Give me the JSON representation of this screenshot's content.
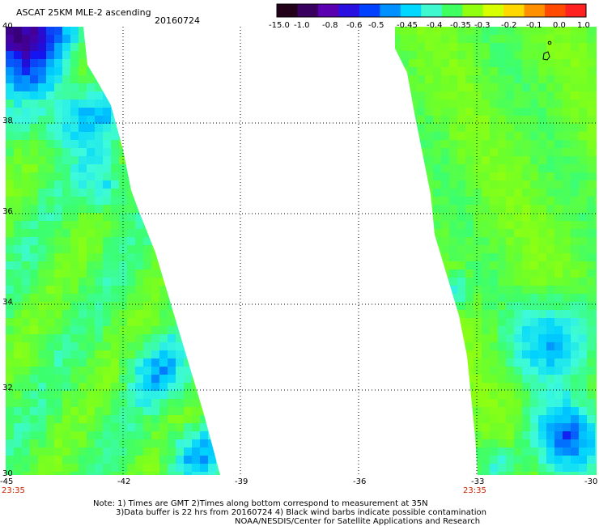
{
  "header": {
    "title": "ASCAT 25KM MLE-2 ascending",
    "date": "20160724"
  },
  "colorbar": {
    "labels": [
      "-15.0",
      "-1.0",
      "-0.8",
      "-0.6",
      "-0.5",
      "-0.45",
      "-0.4",
      "-0.35",
      "-0.3",
      "-0.2",
      "-0.1",
      "0.0",
      "1.0"
    ],
    "colors": [
      "#22001a",
      "#3a0060",
      "#5a00b0",
      "#2a10e0",
      "#0040ff",
      "#0090ff",
      "#00d8ff",
      "#40f8d0",
      "#40ff60",
      "#90ff10",
      "#d8ff00",
      "#ffd800",
      "#ff9000",
      "#ff4a00",
      "#ff2020"
    ]
  },
  "map": {
    "lon_ticks": [
      "-45",
      "-42",
      "-39",
      "-36",
      "-33",
      "-30"
    ],
    "lat_ticks": [
      "40",
      "38",
      "36",
      "34",
      "32",
      "30"
    ],
    "time_labels": [
      "23:35",
      "23:35"
    ]
  },
  "footer": {
    "note_line1": "Note: 1) Times are GMT 2)Times along bottom correspond to measurement at 35N",
    "note_line2": "3)Data buffer is 22 hrs from 20160724 4) Black wind barbs indicate possible contamination",
    "credit": "NOAA/NESDIS/Center for Satellite Applications and Research"
  }
}
